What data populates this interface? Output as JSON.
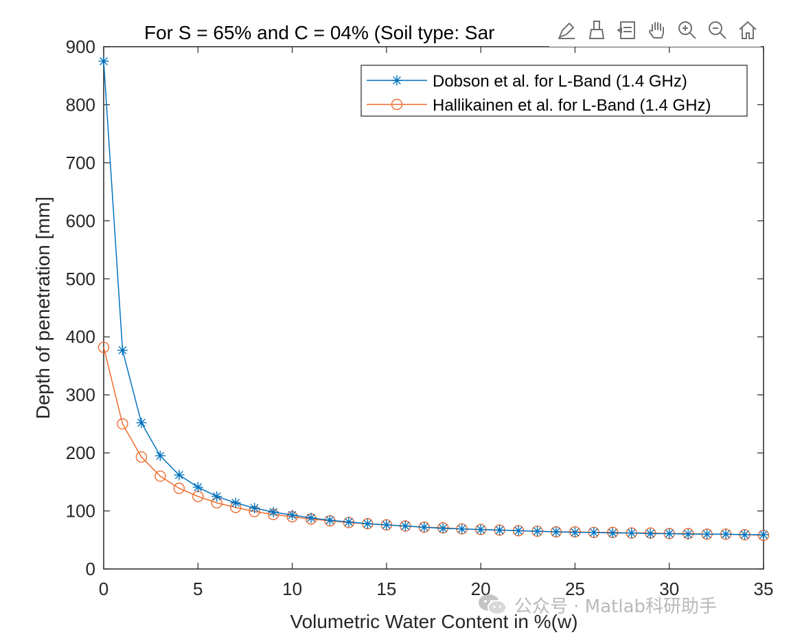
{
  "toolbar": {
    "icons": [
      "edit-plot-icon",
      "brush-icon",
      "datatip-icon",
      "pan-hand-icon",
      "zoom-in-icon",
      "zoom-out-icon",
      "home-restore-icon"
    ]
  },
  "watermark": {
    "text": "公众号 · Matlab科研助手",
    "icon": "wechat-icon"
  },
  "colors": {
    "series1": "#0072BD",
    "series2": "#EE6A2E",
    "axis": "#262626",
    "watermark": "#B9B9B9"
  },
  "chart_data": {
    "type": "line",
    "title": "For S = 65% and C = 04% (Soil type: Sar",
    "xlabel": "Volumetric Water Content in %(w)",
    "ylabel": "Depth of penetration [mm]",
    "xlim": [
      0,
      35
    ],
    "ylim": [
      0,
      900
    ],
    "xticks": [
      0,
      5,
      10,
      15,
      20,
      25,
      30,
      35
    ],
    "yticks": [
      0,
      100,
      200,
      300,
      400,
      500,
      600,
      700,
      800,
      900
    ],
    "grid": false,
    "legend_position": "top-right",
    "x": [
      0,
      1,
      2,
      3,
      4,
      5,
      6,
      7,
      8,
      9,
      10,
      11,
      12,
      13,
      14,
      15,
      16,
      17,
      18,
      19,
      20,
      21,
      22,
      23,
      24,
      25,
      26,
      27,
      28,
      29,
      30,
      31,
      32,
      33,
      34,
      35
    ],
    "series": [
      {
        "name": "Dobson et al. for L-Band (1.4 GHz)",
        "marker": "asterisk",
        "values": [
          875,
          377,
          252,
          195,
          162,
          141,
          125,
          114,
          105,
          98,
          93,
          88,
          84,
          81,
          78,
          76,
          74,
          72,
          70,
          69,
          68,
          67,
          66,
          65,
          64,
          63,
          63,
          62,
          62,
          61,
          61,
          60,
          60,
          60,
          59,
          59
        ]
      },
      {
        "name": "Hallikainen et al. for L-Band (1.4 GHz)",
        "marker": "circle",
        "values": [
          382,
          250,
          193,
          160,
          139,
          125,
          114,
          106,
          99,
          94,
          90,
          86,
          83,
          80,
          78,
          76,
          74,
          72,
          71,
          69,
          68,
          67,
          66,
          65,
          64,
          64,
          63,
          63,
          62,
          62,
          61,
          61,
          60,
          60,
          59,
          58
        ]
      }
    ]
  }
}
